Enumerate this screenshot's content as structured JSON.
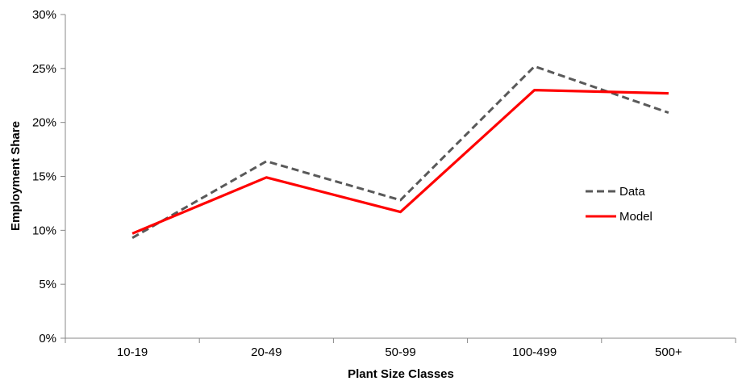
{
  "chart_data": {
    "type": "line",
    "title": "",
    "xlabel": "Plant Size Classes",
    "ylabel": "Employment Share",
    "categories": [
      "10-19",
      "20-49",
      "50-99",
      "100-499",
      "500+"
    ],
    "ylim": [
      0,
      30
    ],
    "yticks": [
      "0%",
      "5%",
      "10%",
      "15%",
      "20%",
      "25%",
      "30%"
    ],
    "grid": false,
    "legend_position": "right",
    "series": [
      {
        "name": "Data",
        "values": [
          9.3,
          16.4,
          12.8,
          25.2,
          20.9
        ],
        "color": "#595959",
        "style": "dashed"
      },
      {
        "name": "Model",
        "values": [
          9.7,
          14.9,
          11.7,
          23.0,
          22.7
        ],
        "color": "#ff0000",
        "style": "solid"
      }
    ]
  }
}
